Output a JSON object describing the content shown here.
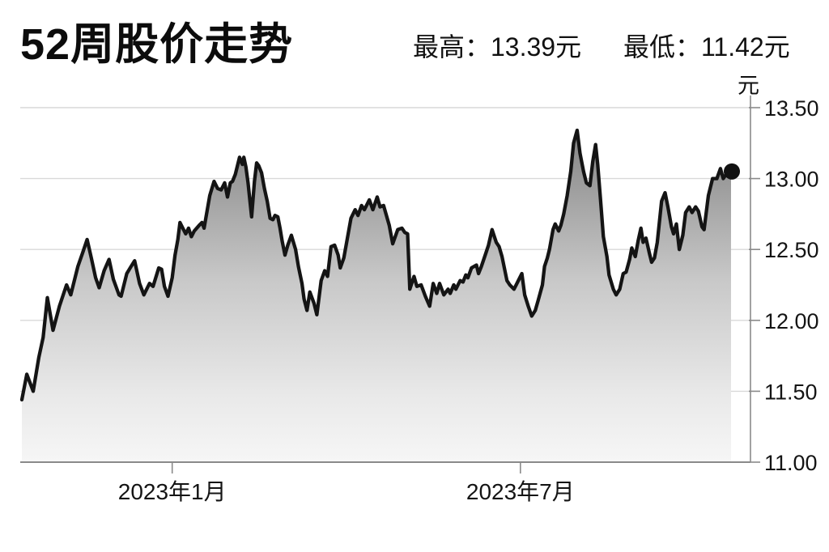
{
  "header": {
    "title": "52周股价走势",
    "high_label": "最高：13.39元",
    "low_label": "最低：11.42元"
  },
  "chart_data": {
    "type": "area",
    "title": "52周股价走势",
    "unit": "元",
    "high": 13.39,
    "low": 11.42,
    "ylim": [
      11.0,
      13.5
    ],
    "yticks": [
      11.0,
      11.5,
      12.0,
      12.5,
      13.0,
      13.5
    ],
    "ytick_labels": [
      "11.00",
      "11.50",
      "12.00",
      "12.50",
      "13.00",
      "13.50"
    ],
    "xticks": [
      {
        "label": "2023年1月",
        "t": 0.212
      },
      {
        "label": "2023年7月",
        "t": 0.703
      }
    ],
    "grid": true,
    "legend": false,
    "line_color": "#141414",
    "grid_color": "#d9d9d9",
    "axis_color": "#8a8a8a",
    "dot_color": "#111111",
    "fill_stops": [
      {
        "offset": 0,
        "color": "#838383"
      },
      {
        "offset": 0.45,
        "color": "#c8c8c8"
      },
      {
        "offset": 0.8,
        "color": "#e9e9e9"
      },
      {
        "offset": 1,
        "color": "#f6f6f6"
      }
    ],
    "end_dot": true,
    "series": [
      {
        "points": [
          [
            0.0,
            11.44
          ],
          [
            0.007,
            11.62
          ],
          [
            0.016,
            11.5
          ],
          [
            0.024,
            11.74
          ],
          [
            0.03,
            11.88
          ],
          [
            0.036,
            12.16
          ],
          [
            0.044,
            11.93
          ],
          [
            0.053,
            12.1
          ],
          [
            0.063,
            12.25
          ],
          [
            0.069,
            12.18
          ],
          [
            0.079,
            12.38
          ],
          [
            0.086,
            12.48
          ],
          [
            0.092,
            12.57
          ],
          [
            0.098,
            12.44
          ],
          [
            0.104,
            12.3
          ],
          [
            0.109,
            12.23
          ],
          [
            0.116,
            12.35
          ],
          [
            0.123,
            12.43
          ],
          [
            0.129,
            12.29
          ],
          [
            0.137,
            12.18
          ],
          [
            0.14,
            12.17
          ],
          [
            0.148,
            12.33
          ],
          [
            0.154,
            12.38
          ],
          [
            0.159,
            12.42
          ],
          [
            0.166,
            12.26
          ],
          [
            0.172,
            12.18
          ],
          [
            0.18,
            12.26
          ],
          [
            0.185,
            12.24
          ],
          [
            0.193,
            12.37
          ],
          [
            0.197,
            12.36
          ],
          [
            0.201,
            12.24
          ],
          [
            0.206,
            12.17
          ],
          [
            0.212,
            12.3
          ],
          [
            0.216,
            12.46
          ],
          [
            0.22,
            12.57
          ],
          [
            0.223,
            12.69
          ],
          [
            0.228,
            12.64
          ],
          [
            0.231,
            12.61
          ],
          [
            0.235,
            12.65
          ],
          [
            0.239,
            12.59
          ],
          [
            0.243,
            12.63
          ],
          [
            0.25,
            12.67
          ],
          [
            0.254,
            12.69
          ],
          [
            0.257,
            12.65
          ],
          [
            0.265,
            12.88
          ],
          [
            0.271,
            12.98
          ],
          [
            0.276,
            12.93
          ],
          [
            0.281,
            12.92
          ],
          [
            0.286,
            12.97
          ],
          [
            0.29,
            12.87
          ],
          [
            0.294,
            12.97
          ],
          [
            0.297,
            12.98
          ],
          [
            0.301,
            13.03
          ],
          [
            0.307,
            13.15
          ],
          [
            0.311,
            13.1
          ],
          [
            0.313,
            13.15
          ],
          [
            0.316,
            13.08
          ],
          [
            0.319,
            12.97
          ],
          [
            0.324,
            12.73
          ],
          [
            0.328,
            12.98
          ],
          [
            0.331,
            13.11
          ],
          [
            0.334,
            13.09
          ],
          [
            0.338,
            13.04
          ],
          [
            0.342,
            12.93
          ],
          [
            0.346,
            12.84
          ],
          [
            0.35,
            12.72
          ],
          [
            0.354,
            12.71
          ],
          [
            0.357,
            12.74
          ],
          [
            0.361,
            12.73
          ],
          [
            0.364,
            12.65
          ],
          [
            0.367,
            12.56
          ],
          [
            0.371,
            12.46
          ],
          [
            0.375,
            12.53
          ],
          [
            0.38,
            12.6
          ],
          [
            0.386,
            12.5
          ],
          [
            0.39,
            12.38
          ],
          [
            0.395,
            12.26
          ],
          [
            0.398,
            12.15
          ],
          [
            0.402,
            12.07
          ],
          [
            0.406,
            12.2
          ],
          [
            0.412,
            12.12
          ],
          [
            0.416,
            12.04
          ],
          [
            0.422,
            12.28
          ],
          [
            0.427,
            12.35
          ],
          [
            0.431,
            12.31
          ],
          [
            0.436,
            12.52
          ],
          [
            0.441,
            12.53
          ],
          [
            0.446,
            12.46
          ],
          [
            0.449,
            12.37
          ],
          [
            0.454,
            12.44
          ],
          [
            0.458,
            12.55
          ],
          [
            0.464,
            12.72
          ],
          [
            0.47,
            12.78
          ],
          [
            0.474,
            12.74
          ],
          [
            0.479,
            12.81
          ],
          [
            0.483,
            12.78
          ],
          [
            0.49,
            12.85
          ],
          [
            0.495,
            12.78
          ],
          [
            0.501,
            12.87
          ],
          [
            0.505,
            12.8
          ],
          [
            0.51,
            12.81
          ],
          [
            0.518,
            12.67
          ],
          [
            0.523,
            12.54
          ],
          [
            0.53,
            12.64
          ],
          [
            0.536,
            12.65
          ],
          [
            0.54,
            12.62
          ],
          [
            0.544,
            12.61
          ],
          [
            0.547,
            12.22
          ],
          [
            0.553,
            12.31
          ],
          [
            0.557,
            12.24
          ],
          [
            0.563,
            12.25
          ],
          [
            0.569,
            12.17
          ],
          [
            0.575,
            12.1
          ],
          [
            0.58,
            12.26
          ],
          [
            0.585,
            12.19
          ],
          [
            0.589,
            12.26
          ],
          [
            0.595,
            12.18
          ],
          [
            0.601,
            12.22
          ],
          [
            0.604,
            12.19
          ],
          [
            0.609,
            12.25
          ],
          [
            0.612,
            12.22
          ],
          [
            0.618,
            12.28
          ],
          [
            0.622,
            12.27
          ],
          [
            0.626,
            12.32
          ],
          [
            0.629,
            12.3
          ],
          [
            0.634,
            12.37
          ],
          [
            0.641,
            12.39
          ],
          [
            0.644,
            12.33
          ],
          [
            0.648,
            12.38
          ],
          [
            0.654,
            12.47
          ],
          [
            0.658,
            12.53
          ],
          [
            0.663,
            12.64
          ],
          [
            0.669,
            12.55
          ],
          [
            0.673,
            12.52
          ],
          [
            0.677,
            12.45
          ],
          [
            0.684,
            12.28
          ],
          [
            0.688,
            12.25
          ],
          [
            0.694,
            12.22
          ],
          [
            0.697,
            12.25
          ],
          [
            0.705,
            12.33
          ],
          [
            0.709,
            12.18
          ],
          [
            0.714,
            12.1
          ],
          [
            0.719,
            12.03
          ],
          [
            0.724,
            12.07
          ],
          [
            0.728,
            12.14
          ],
          [
            0.734,
            12.25
          ],
          [
            0.737,
            12.38
          ],
          [
            0.741,
            12.44
          ],
          [
            0.744,
            12.5
          ],
          [
            0.749,
            12.64
          ],
          [
            0.752,
            12.68
          ],
          [
            0.757,
            12.63
          ],
          [
            0.76,
            12.67
          ],
          [
            0.764,
            12.75
          ],
          [
            0.769,
            12.88
          ],
          [
            0.774,
            13.05
          ],
          [
            0.778,
            13.25
          ],
          [
            0.783,
            13.34
          ],
          [
            0.787,
            13.18
          ],
          [
            0.792,
            13.05
          ],
          [
            0.796,
            12.97
          ],
          [
            0.801,
            12.95
          ],
          [
            0.805,
            13.12
          ],
          [
            0.809,
            13.24
          ],
          [
            0.812,
            13.1
          ],
          [
            0.816,
            12.85
          ],
          [
            0.82,
            12.59
          ],
          [
            0.825,
            12.45
          ],
          [
            0.828,
            12.32
          ],
          [
            0.834,
            12.22
          ],
          [
            0.838,
            12.18
          ],
          [
            0.843,
            12.22
          ],
          [
            0.848,
            12.33
          ],
          [
            0.852,
            12.34
          ],
          [
            0.857,
            12.43
          ],
          [
            0.86,
            12.51
          ],
          [
            0.865,
            12.45
          ],
          [
            0.869,
            12.56
          ],
          [
            0.873,
            12.65
          ],
          [
            0.876,
            12.55
          ],
          [
            0.88,
            12.58
          ],
          [
            0.885,
            12.47
          ],
          [
            0.888,
            12.41
          ],
          [
            0.892,
            12.44
          ],
          [
            0.896,
            12.55
          ],
          [
            0.902,
            12.84
          ],
          [
            0.907,
            12.9
          ],
          [
            0.911,
            12.8
          ],
          [
            0.916,
            12.66
          ],
          [
            0.919,
            12.61
          ],
          [
            0.923,
            12.68
          ],
          [
            0.927,
            12.5
          ],
          [
            0.932,
            12.6
          ],
          [
            0.936,
            12.76
          ],
          [
            0.941,
            12.8
          ],
          [
            0.945,
            12.76
          ],
          [
            0.95,
            12.8
          ],
          [
            0.954,
            12.77
          ],
          [
            0.959,
            12.66
          ],
          [
            0.962,
            12.64
          ],
          [
            0.968,
            12.88
          ],
          [
            0.974,
            13.0
          ],
          [
            0.98,
            13.0
          ],
          [
            0.985,
            13.07
          ],
          [
            0.989,
            13.0
          ],
          [
            0.993,
            13.03
          ],
          [
            1.0,
            13.05
          ]
        ]
      }
    ]
  }
}
